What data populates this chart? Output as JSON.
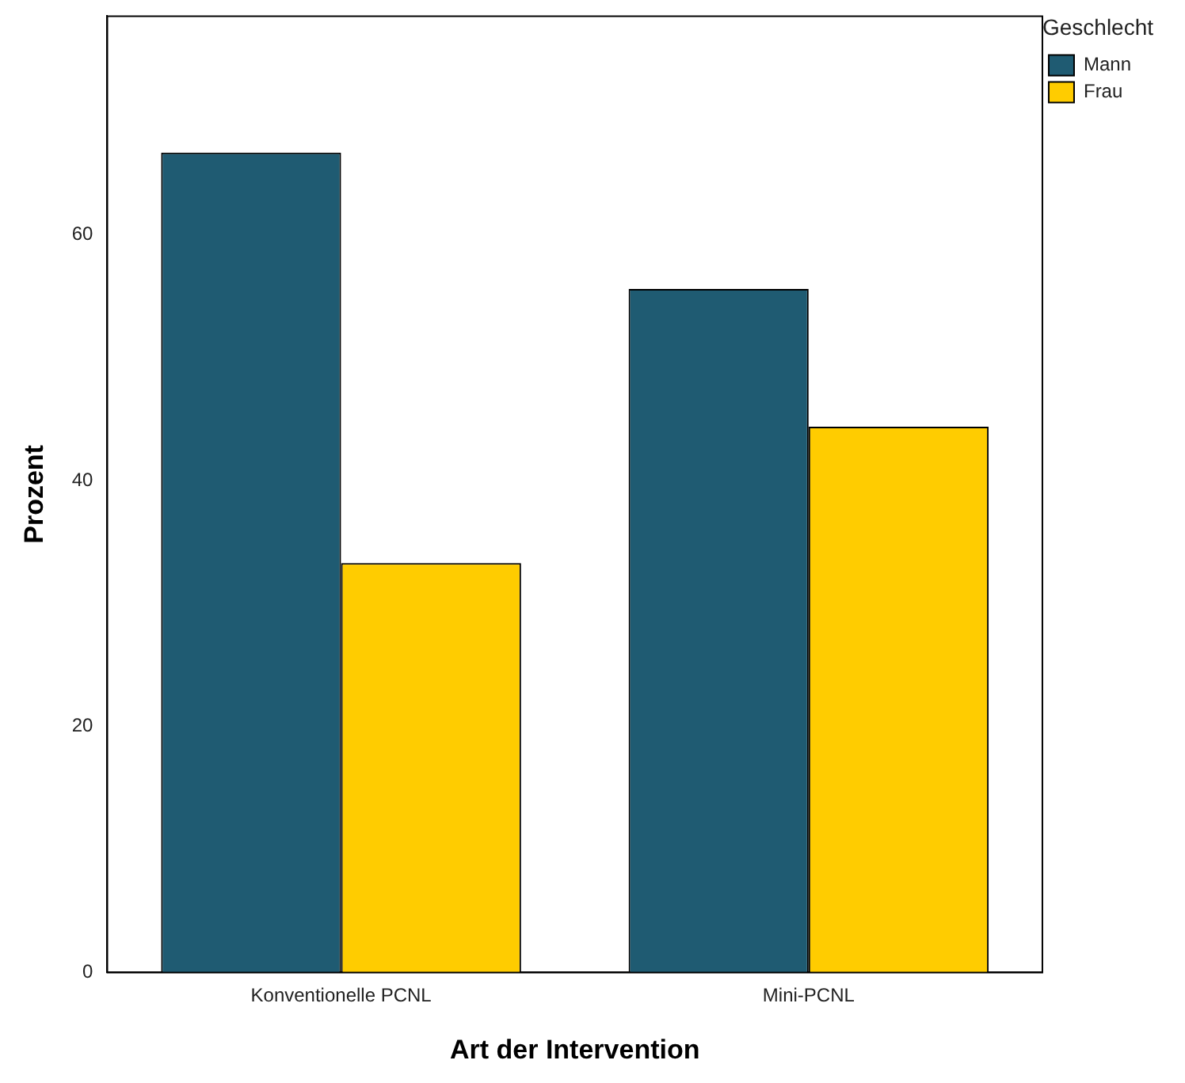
{
  "chart_data": {
    "type": "bar",
    "xlabel": "Art der Intervention",
    "ylabel": "Prozent",
    "legend_title": "Geschlecht",
    "categories": [
      "Konventionelle PCNL",
      "Mini-PCNL"
    ],
    "series": [
      {
        "name": "Mann",
        "color": "#1f5b72",
        "values": [
          66.7,
          55.6
        ]
      },
      {
        "name": "Frau",
        "color": "#ffcc00",
        "values": [
          33.3,
          44.4
        ]
      }
    ],
    "ylim": [
      0,
      77.8
    ],
    "yticks": [
      0,
      20,
      40,
      60
    ],
    "grid": false,
    "legend": "top right"
  }
}
